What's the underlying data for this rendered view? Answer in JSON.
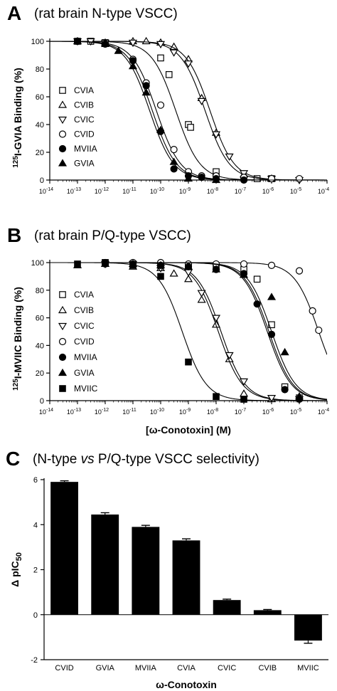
{
  "chart_data": [
    {
      "panel": "A",
      "type": "line",
      "title": "(rat brain N-type VSCC)",
      "ylabel_pre": "125",
      "ylabel_main": "I-GVIA Binding (%)",
      "xlabel": "",
      "x_scale": "log",
      "xlim": [
        1e-14,
        0.0001
      ],
      "ylim": [
        0,
        100
      ],
      "x_ticks": [
        "10-14",
        "10-13",
        "10-12",
        "10-11",
        "10-10",
        "10-9",
        "10-8",
        "10-7",
        "10-6",
        "10-5",
        "10-4"
      ],
      "y_ticks": [
        0,
        20,
        40,
        60,
        80,
        100
      ],
      "legend_position": "left",
      "series": [
        {
          "name": "CVIA",
          "marker": "square-open",
          "ic50": 3.5e-10,
          "hill": 1.0,
          "points": [
            [
              1e-13,
              100
            ],
            [
              3e-13,
              100
            ],
            [
              1e-12,
              99
            ],
            [
              1e-10,
              88
            ],
            [
              2e-10,
              76
            ],
            [
              1e-09,
              40
            ],
            [
              1.2e-09,
              38
            ],
            [
              1e-08,
              6
            ],
            [
              3e-07,
              1
            ],
            [
              1e-06,
              1
            ]
          ]
        },
        {
          "name": "CVIB",
          "marker": "triangle-open",
          "ic50": 4e-09,
          "hill": 1.0,
          "points": [
            [
              1e-13,
              100
            ],
            [
              1e-12,
              99
            ],
            [
              1e-11,
              100
            ],
            [
              3e-11,
              100
            ],
            [
              1e-10,
              99
            ],
            [
              3e-10,
              96
            ],
            [
              1e-09,
              87
            ],
            [
              3e-09,
              59
            ],
            [
              1e-08,
              34
            ],
            [
              1e-07,
              4
            ],
            [
              1e-06,
              1
            ]
          ]
        },
        {
          "name": "CVIC",
          "marker": "triangle-down-open",
          "ic50": 6e-09,
          "hill": 1.0,
          "points": [
            [
              1e-13,
              100
            ],
            [
              3e-13,
              100
            ],
            [
              1e-12,
              99
            ],
            [
              1e-11,
              99
            ],
            [
              1e-10,
              98
            ],
            [
              3e-10,
              92
            ],
            [
              1e-09,
              84
            ],
            [
              3e-09,
              57
            ],
            [
              1e-08,
              33
            ],
            [
              3e-08,
              17
            ],
            [
              1e-07,
              5
            ],
            [
              1e-06,
              1
            ],
            [
              1e-05,
              0
            ]
          ]
        },
        {
          "name": "CVID",
          "marker": "circle-open",
          "ic50": 7e-11,
          "hill": 1.0,
          "points": [
            [
              1e-13,
              100
            ],
            [
              1e-12,
              98
            ],
            [
              1e-11,
              87
            ],
            [
              3e-11,
              70
            ],
            [
              1e-10,
              54
            ],
            [
              3e-10,
              22
            ],
            [
              1e-09,
              6
            ],
            [
              3e-09,
              3
            ],
            [
              1e-08,
              3
            ],
            [
              1e-07,
              2
            ],
            [
              1e-06,
              1
            ],
            [
              1e-05,
              1
            ]
          ]
        },
        {
          "name": "MVIIA",
          "marker": "circle-filled",
          "ic50": 5e-11,
          "hill": 1.0,
          "points": [
            [
              1e-13,
              100
            ],
            [
              1e-12,
              98
            ],
            [
              1e-11,
              86
            ],
            [
              3e-11,
              68
            ],
            [
              1e-10,
              35
            ],
            [
              3e-10,
              8
            ],
            [
              1e-09,
              3
            ],
            [
              3e-09,
              2
            ],
            [
              1e-08,
              1
            ],
            [
              1e-07,
              0
            ]
          ]
        },
        {
          "name": "GVIA",
          "marker": "triangle-filled",
          "ic50": 4e-11,
          "hill": 1.0,
          "points": [
            [
              1e-13,
              100
            ],
            [
              1e-12,
              98
            ],
            [
              3e-12,
              93
            ],
            [
              1e-11,
              82
            ],
            [
              3e-11,
              63
            ],
            [
              1e-10,
              36
            ],
            [
              3e-10,
              13
            ],
            [
              1e-09,
              1
            ],
            [
              1e-08,
              0
            ]
          ]
        }
      ]
    },
    {
      "panel": "B",
      "type": "line",
      "title": "(rat brain P/Q-type VSCC)",
      "ylabel_pre": "125",
      "ylabel_main": "I-MVIIC Binding (%)",
      "xlabel": "[ω-Conotoxin] (M)",
      "x_scale": "log",
      "xlim": [
        1e-14,
        0.0001
      ],
      "ylim": [
        0,
        100
      ],
      "x_ticks": [
        "10-14",
        "10-13",
        "10-12",
        "10-11",
        "10-10",
        "10-9",
        "10-8",
        "10-7",
        "10-6",
        "10-5",
        "10-4"
      ],
      "y_ticks": [
        0,
        20,
        40,
        60,
        80,
        100
      ],
      "legend_position": "left",
      "series": [
        {
          "name": "CVIA",
          "marker": "square-open",
          "ic50": 8e-07,
          "hill": 1.0,
          "points": [
            [
              1e-12,
              100
            ],
            [
              1e-11,
              99
            ],
            [
              1e-10,
              98
            ],
            [
              1e-09,
              97
            ],
            [
              1e-08,
              96
            ],
            [
              1e-07,
              95
            ],
            [
              3e-07,
              88
            ],
            [
              1e-06,
              55
            ],
            [
              3e-06,
              10
            ],
            [
              1e-05,
              2
            ]
          ]
        },
        {
          "name": "CVIB",
          "marker": "triangle-open",
          "ic50": 1.5e-08,
          "hill": 1.0,
          "points": [
            [
              1e-12,
              99
            ],
            [
              1e-11,
              97
            ],
            [
              1e-10,
              96
            ],
            [
              3e-10,
              92
            ],
            [
              1e-09,
              88
            ],
            [
              3e-09,
              73
            ],
            [
              1e-08,
              55
            ],
            [
              3e-08,
              30
            ],
            [
              1e-07,
              5
            ],
            [
              1e-06,
              1
            ]
          ]
        },
        {
          "name": "CVIC",
          "marker": "triangle-down-open",
          "ic50": 1.2e-08,
          "hill": 1.0,
          "points": [
            [
              1e-12,
              99
            ],
            [
              1e-11,
              99
            ],
            [
              1e-10,
              96
            ],
            [
              1e-09,
              93
            ],
            [
              3e-09,
              78
            ],
            [
              1e-08,
              60
            ],
            [
              3e-08,
              33
            ],
            [
              1e-07,
              14
            ],
            [
              1e-06,
              2
            ],
            [
              1e-05,
              1
            ]
          ]
        },
        {
          "name": "CVID",
          "marker": "circle-open",
          "ic50": 5e-05,
          "hill": 1.0,
          "points": [
            [
              1e-12,
              100
            ],
            [
              1e-11,
              100
            ],
            [
              1e-10,
              100
            ],
            [
              1e-09,
              99
            ],
            [
              1e-08,
              99
            ],
            [
              1e-07,
              99
            ],
            [
              1e-06,
              98
            ],
            [
              1e-05,
              94
            ],
            [
              3e-05,
              65
            ],
            [
              5e-05,
              51
            ]
          ]
        },
        {
          "name": "MVIIA",
          "marker": "circle-filled",
          "ic50": 7e-07,
          "hill": 1.0,
          "points": [
            [
              1e-12,
              99
            ],
            [
              1e-11,
              99
            ],
            [
              1e-10,
              98
            ],
            [
              1e-09,
              97
            ],
            [
              1e-08,
              95
            ],
            [
              1e-07,
              92
            ],
            [
              3e-07,
              70
            ],
            [
              1e-06,
              48
            ],
            [
              3e-06,
              8
            ],
            [
              1e-05,
              1
            ]
          ]
        },
        {
          "name": "GVIA",
          "marker": "triangle-filled",
          "ic50": 1e-06,
          "hill": 1.0,
          "points": [
            [
              1e-13,
              98
            ],
            [
              1e-12,
              99
            ],
            [
              1e-11,
              99
            ],
            [
              1e-10,
              98
            ],
            [
              1e-09,
              97
            ],
            [
              1e-08,
              95
            ],
            [
              1e-07,
              91
            ],
            [
              1e-06,
              75
            ],
            [
              3e-06,
              35
            ],
            [
              1e-05,
              3
            ]
          ]
        },
        {
          "name": "MVIIC",
          "marker": "square-filled",
          "ic50": 6e-10,
          "hill": 1.0,
          "points": [
            [
              1e-13,
              99
            ],
            [
              1e-12,
              100
            ],
            [
              1e-11,
              98
            ],
            [
              1e-10,
              90
            ],
            [
              1e-09,
              28
            ],
            [
              1e-08,
              3
            ],
            [
              1e-07,
              1
            ]
          ]
        }
      ]
    },
    {
      "panel": "C",
      "type": "bar",
      "title": "(N-type vs P/Q-type VSCC selectivity)",
      "title_parts": [
        "(N-type ",
        "vs",
        " P/Q-type VSCC selectivity)"
      ],
      "ylabel_pre": "Δ pIC",
      "ylabel_sub": "50",
      "xlabel": "ω-Conotoxin",
      "ylim": [
        -2,
        6
      ],
      "y_ticks": [
        -2,
        0,
        2,
        4,
        6
      ],
      "categories": [
        "CVID",
        "GVIA",
        "MVIIA",
        "CVIA",
        "CVIC",
        "CVIB",
        "MVIIC"
      ],
      "values": [
        5.9,
        4.45,
        3.9,
        3.3,
        0.65,
        0.2,
        -1.15
      ],
      "errors": [
        0.05,
        0.08,
        0.07,
        0.07,
        0.04,
        0.03,
        0.12
      ]
    }
  ]
}
